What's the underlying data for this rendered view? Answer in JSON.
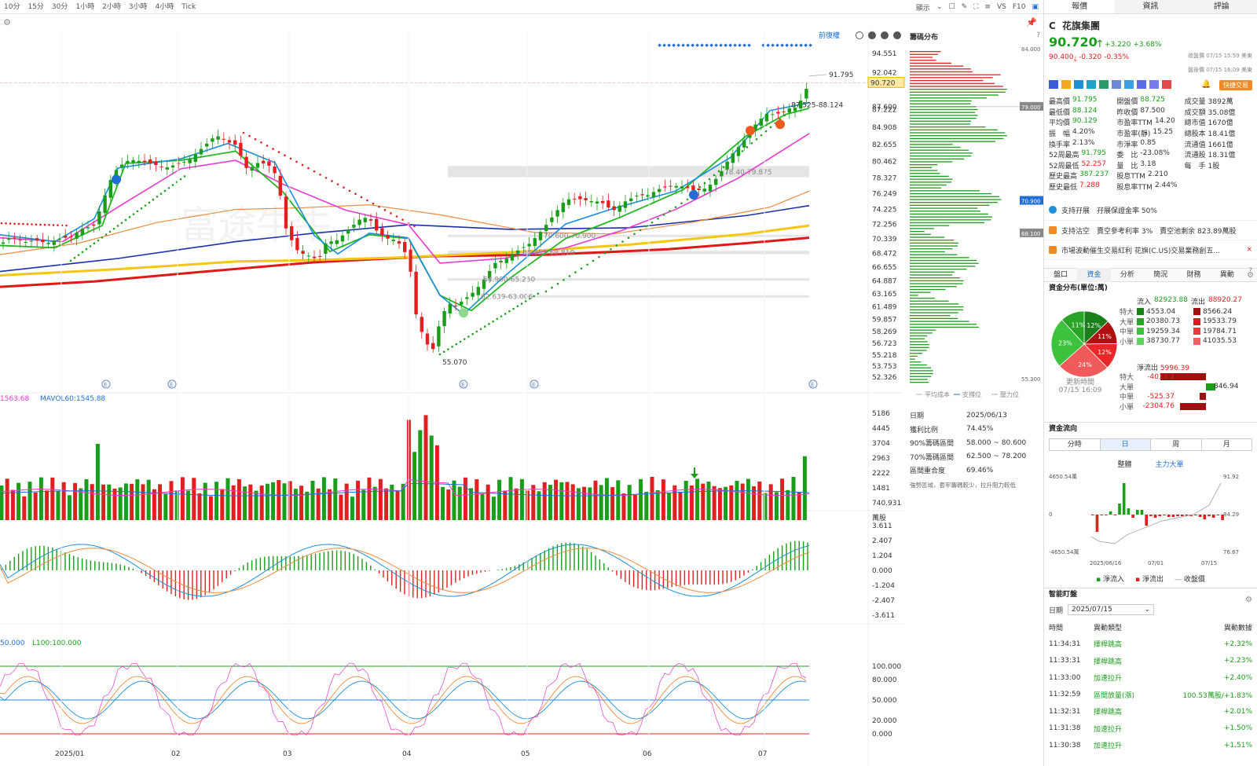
{
  "toolbar": {
    "timeframes": [
      "10分",
      "15分",
      "30分",
      "1小時",
      "2小時",
      "3小時",
      "4小時",
      "Tick"
    ],
    "display_label": "顯示",
    "vs_label": "VS",
    "f10_label": "F10",
    "restore_label": "前復權"
  },
  "chips_panel": {
    "title": "籌碼分布",
    "price_top": "84.000",
    "price_bottom": "55.300",
    "markers": [
      "79.000",
      "70.900",
      "68.100"
    ],
    "legend": [
      "平均成本",
      "支撐位",
      "壓力位"
    ],
    "info": [
      {
        "k": "日期",
        "v": "2025/06/13"
      },
      {
        "k": "獲利比例",
        "v": "74.45%"
      },
      {
        "k": "90%籌碼區間",
        "v": "58.000 ~ 80.600"
      },
      {
        "k": "70%籌碼區間",
        "v": "62.500 ~ 78.200"
      },
      {
        "k": "區間重合度",
        "v": "69.46%"
      }
    ],
    "note": "強勢區域，套牢籌碼較少，拉升阻力較低"
  },
  "price_axis": [
    "94.551",
    "92.042",
    "90.720",
    "87.600",
    "87.222",
    "84.908",
    "82.655",
    "80.462",
    "78.327",
    "76.249",
    "74.225",
    "72.256",
    "70.339",
    "68.472",
    "66.655",
    "64.887",
    "63.165",
    "61.489",
    "59.857",
    "58.269",
    "56.723",
    "55.218",
    "53.753",
    "52.326"
  ],
  "vol_axis": [
    "5186",
    "4445",
    "3704",
    "2963",
    "2222",
    "1481",
    "740.931",
    "萬股"
  ],
  "macd_axis": [
    "3.611",
    "2.407",
    "1.204",
    "0.000",
    "-1.204",
    "-2.407",
    "-3.611"
  ],
  "kdj_axis": [
    "100.000",
    "80.000",
    "50.000",
    "20.000",
    "0.000"
  ],
  "x_axis": [
    "2025/01",
    "02",
    "03",
    "04",
    "05",
    "06",
    "07"
  ],
  "chart_labels": {
    "high": "91.795",
    "low": "55.070",
    "range1": "87.525-88.124",
    "range2": "78.40-79.875",
    "range3": "70.600-70.900",
    "range4": "68.353-68.810",
    "range5": "64.900-65.250",
    "range6": "62.639-63.006",
    "vol_legend_ma": "1563.68",
    "vol_legend_mavol60": "MAVOL60:1545.88",
    "kdj_legend_left": "50.000",
    "kdj_legend": "L100:100.000"
  },
  "quote": {
    "tabs": [
      "報價",
      "資訊",
      "評論"
    ],
    "symbol": "C",
    "name": "花旗集團",
    "price": "90.720",
    "change": "+3.220",
    "change_pct": "+3.68%",
    "post_price": "90.400",
    "post_change": "-0.320",
    "post_pct": "-0.35%",
    "close_time": "收盤價 07/15 15:59 美東",
    "post_time": "盤後價 07/15 16:09 美東",
    "fast_trade": "快捷交易",
    "fields": [
      [
        {
          "k": "最高價",
          "v": "91.795",
          "c": "green"
        },
        {
          "k": "開盤價",
          "v": "88.725",
          "c": "green"
        },
        {
          "k": "成交量",
          "v": "3892萬",
          "c": ""
        }
      ],
      [
        {
          "k": "最低價",
          "v": "88.124",
          "c": "green"
        },
        {
          "k": "昨收價",
          "v": "87.500",
          "c": ""
        },
        {
          "k": "成交額",
          "v": "35.08億",
          "c": ""
        }
      ],
      [
        {
          "k": "平均價",
          "v": "90.129",
          "c": "green"
        },
        {
          "k": "市盈率TTM",
          "v": "14.20",
          "c": ""
        },
        {
          "k": "總市值",
          "v": "1670億",
          "c": ""
        }
      ],
      [
        {
          "k": "振　幅",
          "v": "4.20%",
          "c": ""
        },
        {
          "k": "市盈率(靜)",
          "v": "15.25",
          "c": ""
        },
        {
          "k": "總股本",
          "v": "18.41億",
          "c": ""
        }
      ],
      [
        {
          "k": "換手率",
          "v": "2.13%",
          "c": ""
        },
        {
          "k": "市淨率",
          "v": "0.85",
          "c": ""
        },
        {
          "k": "流通值",
          "v": "1661億",
          "c": ""
        }
      ],
      [
        {
          "k": "52周最高",
          "v": "91.795",
          "c": "green"
        },
        {
          "k": "委　比",
          "v": "-23.08%",
          "c": ""
        },
        {
          "k": "流通股",
          "v": "18.31億",
          "c": ""
        }
      ],
      [
        {
          "k": "52周最低",
          "v": "52.257",
          "c": "red"
        },
        {
          "k": "量　比",
          "v": "3.18",
          "c": ""
        },
        {
          "k": "每　手",
          "v": "1股",
          "c": ""
        }
      ],
      [
        {
          "k": "歷史最高",
          "v": "387.237",
          "c": "green"
        },
        {
          "k": "股息TTM",
          "v": "2.210",
          "c": ""
        },
        {
          "k": "",
          "v": "",
          "c": ""
        }
      ],
      [
        {
          "k": "歷史最低",
          "v": "7.288",
          "c": "red"
        },
        {
          "k": "股息率TTM",
          "v": "2.44%",
          "c": ""
        },
        {
          "k": "",
          "v": "",
          "c": ""
        }
      ]
    ],
    "tags": [
      "支持孖展　孖展保證金率 50%",
      "支持沽空　賣空參考利率 3%　賣空池剩余 823.89萬股",
      "市場波動催生交易紅利 花旗(C.US)交易業務創五..."
    ]
  },
  "fund": {
    "subtabs": [
      "盤口",
      "資金",
      "分析",
      "簡況",
      "財務",
      "異動"
    ],
    "dist_title": "資金分布(單位:萬)",
    "inflow_label": "流入",
    "inflow": "82923.88",
    "outflow_label": "流出",
    "outflow": "88920.27",
    "rows": [
      {
        "k": "特大",
        "in": "4553.04",
        "out": "8566.24"
      },
      {
        "k": "大單",
        "in": "20380.73",
        "out": "19533.79"
      },
      {
        "k": "中單",
        "in": "19259.34",
        "out": "19784.71"
      },
      {
        "k": "小單",
        "in": "38730.77",
        "out": "41035.53"
      }
    ],
    "pie": [
      {
        "label": "12%",
        "value": 12,
        "color": "#1a7e1a"
      },
      {
        "label": "11%",
        "value": 11,
        "color": "#b01010"
      },
      {
        "label": "12%",
        "value": 12,
        "color": "#e82828"
      },
      {
        "label": "24%",
        "value": 24,
        "color": "#f05a5a"
      },
      {
        "label": "23%",
        "value": 23,
        "color": "#3cc23c"
      },
      {
        "label": "11%",
        "value": 11,
        "color": "#28a428"
      }
    ],
    "net_label": "淨流出",
    "net": "5996.39",
    "net_rows": [
      {
        "k": "特大",
        "v": "-4013.2"
      },
      {
        "k": "大單",
        "v": "846.94"
      },
      {
        "k": "中單",
        "v": "-525.37"
      },
      {
        "k": "小單",
        "v": "-2304.76"
      }
    ],
    "update_label": "更新時間",
    "update_time": "07/15 16:09",
    "flow_title": "資金流向",
    "periods": [
      "分時",
      "日",
      "周",
      "月"
    ],
    "flow_tabs": [
      "整體",
      "主力大單"
    ],
    "flow_axis_left": [
      "4650.54萬",
      "0",
      "-4650.54萬"
    ],
    "flow_axis_right": [
      "91.92",
      "84.29",
      "76.67"
    ],
    "flow_dates": [
      "2025/06/16",
      "07/01",
      "07/15"
    ],
    "flow_legend": [
      "淨流入",
      "淨流出",
      "收盤價"
    ]
  },
  "smart": {
    "title": "智能盯盤",
    "date_label": "日期",
    "date": "2025/07/15",
    "headers": [
      "時間",
      "異動類型",
      "異動數據"
    ],
    "rows": [
      {
        "t": "11:34:31",
        "type": "擇桿跳高",
        "val": "+2.32%"
      },
      {
        "t": "11:33:31",
        "type": "擇桿跳高",
        "val": "+2.23%"
      },
      {
        "t": "11:33:00",
        "type": "加速拉升",
        "val": "+2.40%"
      },
      {
        "t": "11:32:59",
        "type": "區間放量(漲)",
        "val": "100.53萬股/+1.83%"
      },
      {
        "t": "11:32:31",
        "type": "擇桿跳高",
        "val": "+2.01%"
      },
      {
        "t": "11:31:38",
        "type": "加速拉升",
        "val": "+1.50%"
      },
      {
        "t": "11:30:38",
        "type": "加速拉升",
        "val": "+1.51%"
      }
    ]
  }
}
